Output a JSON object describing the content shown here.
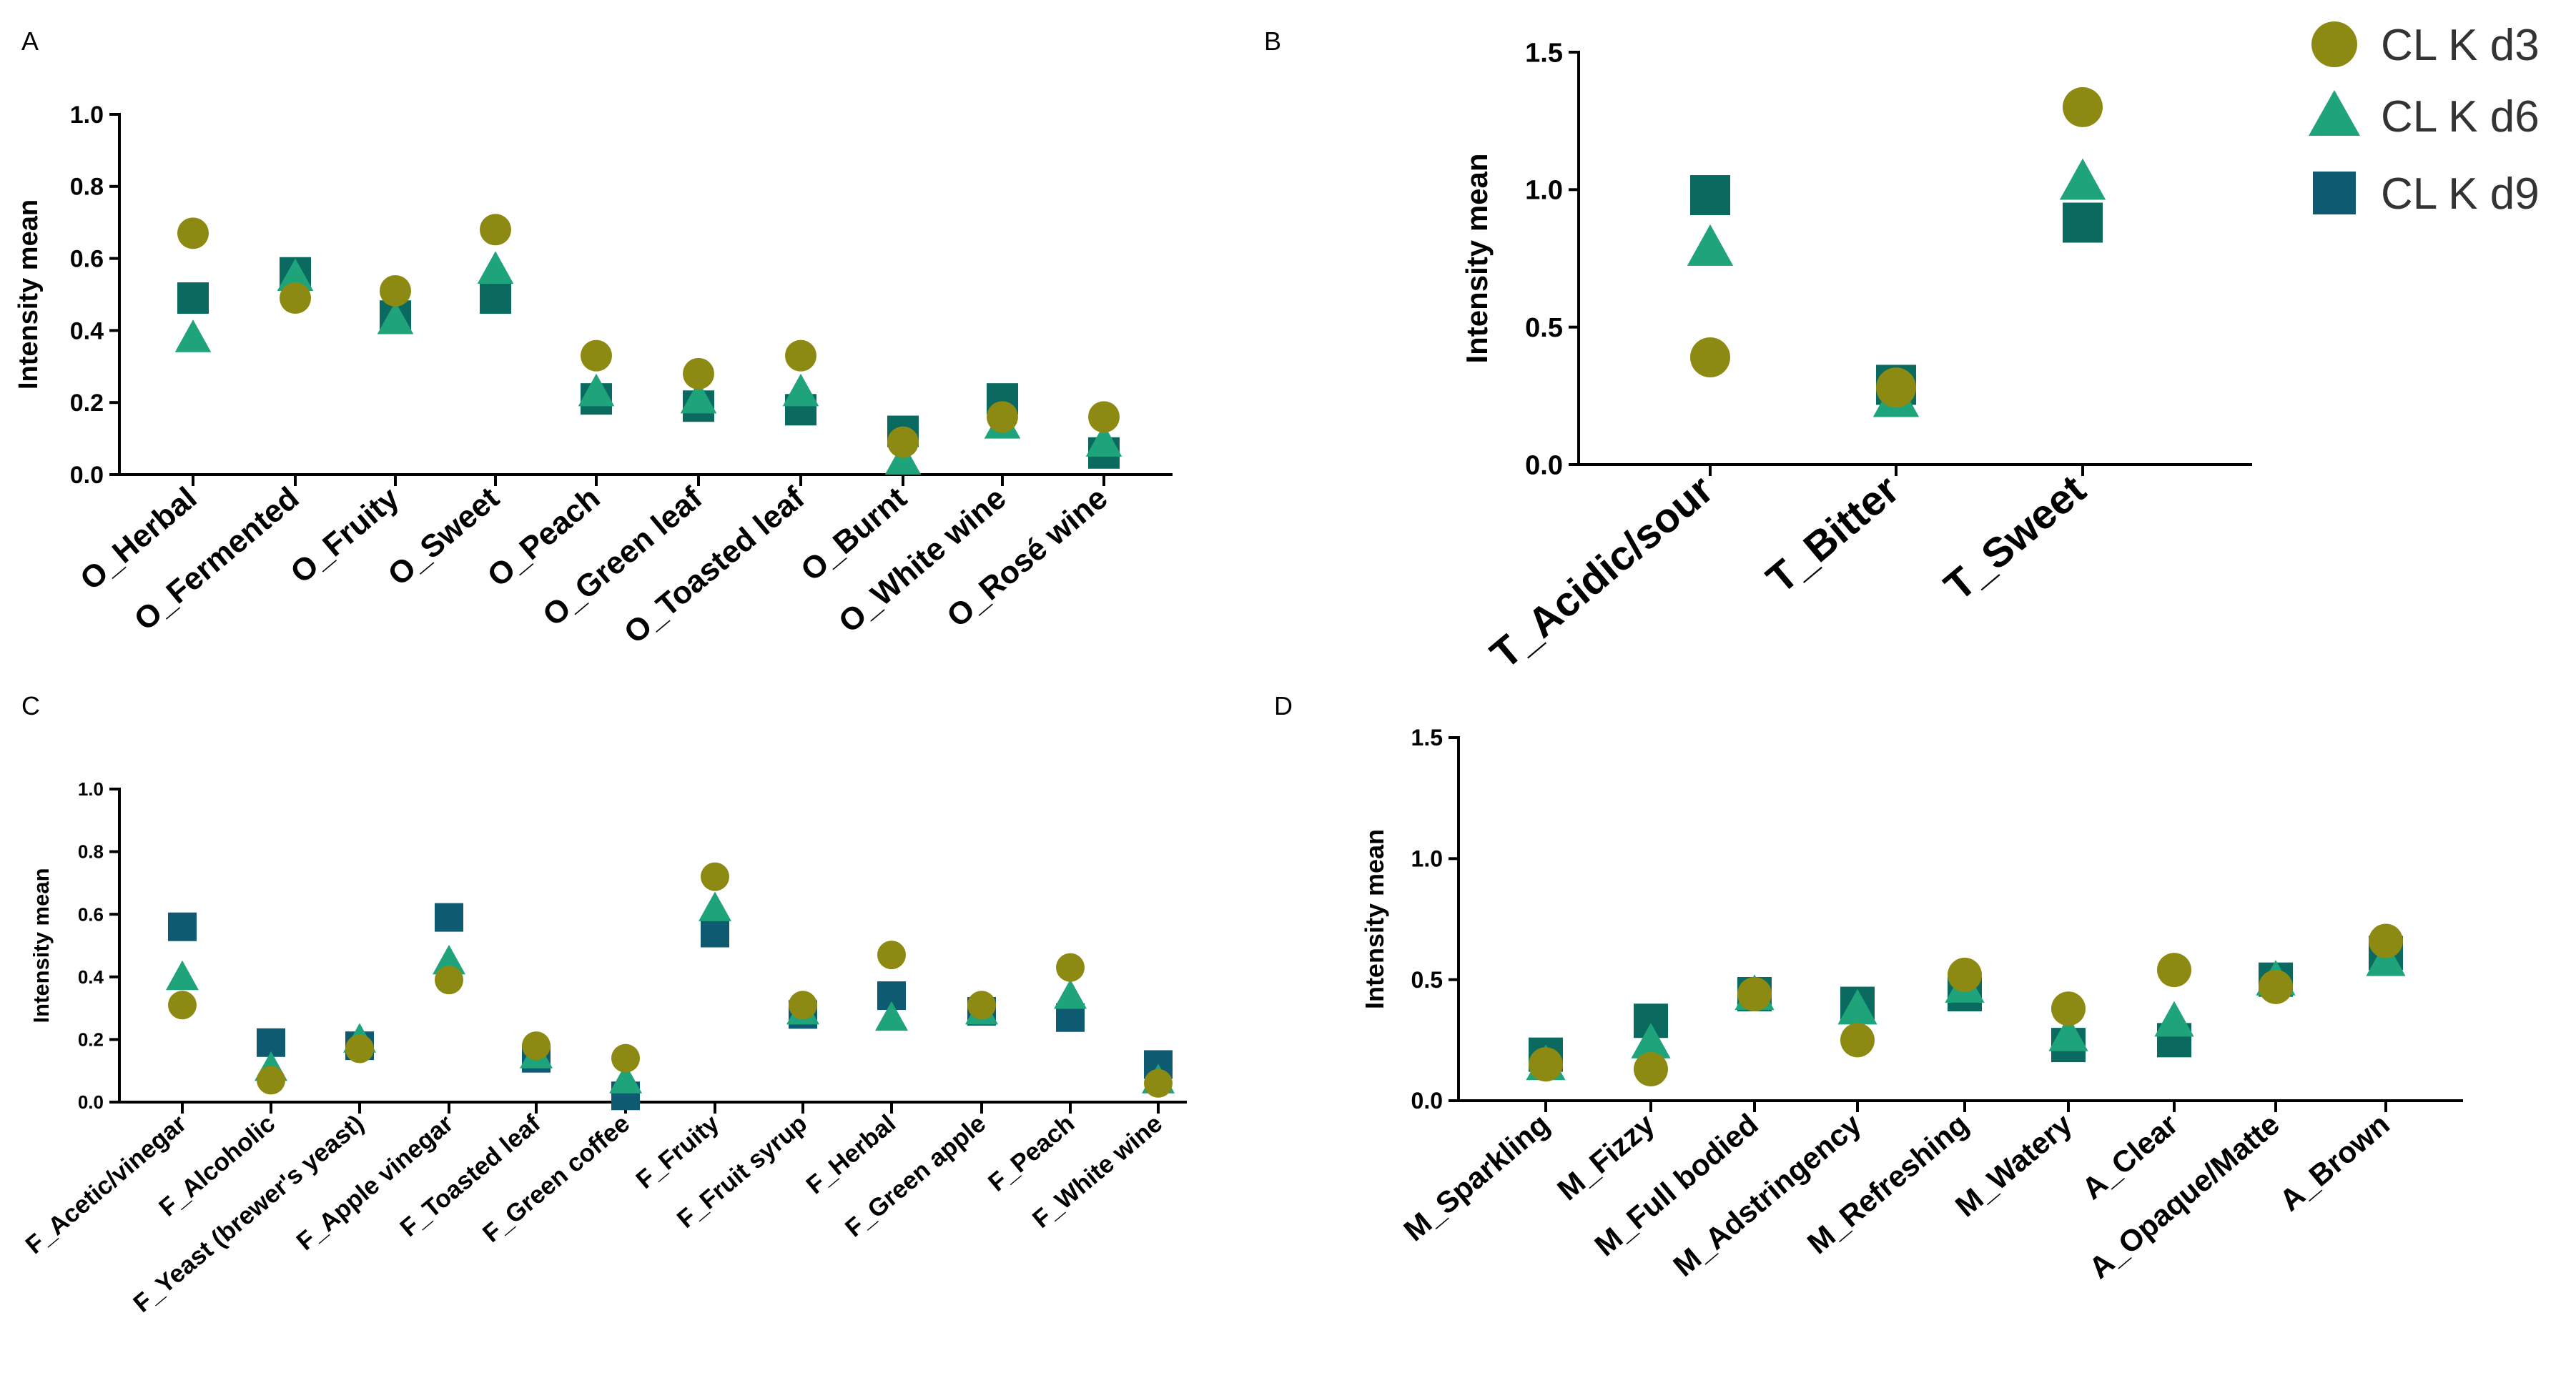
{
  "colors": {
    "d3": "#8c8a12",
    "d6": "#1ea37a",
    "d9": "#0a6a60",
    "d9_alt": "#0e5a70"
  },
  "legend": [
    {
      "label": "CL K d3",
      "marker": "circle",
      "color": "#8c8a12"
    },
    {
      "label": "CL K d6",
      "marker": "triangle",
      "color": "#1ea37a"
    },
    {
      "label": "CL K d9",
      "marker": "square",
      "color": "#0e5a70"
    }
  ],
  "chart_data": [
    {
      "panel": "A",
      "type": "scatter",
      "ylabel": "Intensity mean",
      "ylim": [
        0,
        1.0
      ],
      "yticks": [
        "0.0",
        "0.2",
        "0.4",
        "0.6",
        "0.8",
        "1.0"
      ],
      "categories": [
        "O_Herbal",
        "O_Fermented",
        "O_Fruity",
        "O_Sweet",
        "O_Peach",
        "O_Green leaf",
        "O_Toasted leaf",
        "O_Burnt",
        "O_White wine",
        "O_Rosé wine"
      ],
      "series": [
        {
          "name": "CL K d3",
          "values": [
            0.67,
            0.49,
            0.51,
            0.68,
            0.33,
            0.28,
            0.33,
            0.09,
            0.16,
            0.16
          ]
        },
        {
          "name": "CL K d6",
          "values": [
            0.38,
            0.55,
            0.43,
            0.57,
            0.23,
            0.21,
            0.23,
            0.04,
            0.14,
            0.09
          ]
        },
        {
          "name": "CL K d9",
          "values": [
            0.49,
            0.56,
            0.44,
            0.49,
            0.21,
            0.19,
            0.18,
            0.12,
            0.21,
            0.06
          ]
        }
      ]
    },
    {
      "panel": "B",
      "type": "scatter",
      "ylabel": "Intensity mean",
      "ylim": [
        0,
        1.5
      ],
      "yticks": [
        "0.0",
        "0.5",
        "1.0",
        "1.5"
      ],
      "categories": [
        "T_Acidic/sour",
        "T_Bitter",
        "T_Sweet"
      ],
      "series": [
        {
          "name": "CL K d3",
          "values": [
            0.39,
            0.28,
            1.3
          ]
        },
        {
          "name": "CL K d6",
          "values": [
            0.79,
            0.24,
            1.03
          ]
        },
        {
          "name": "CL K d9",
          "values": [
            0.98,
            0.29,
            0.88
          ]
        }
      ]
    },
    {
      "panel": "C",
      "type": "scatter",
      "ylabel": "Intensity mean",
      "ylim": [
        0,
        1.0
      ],
      "yticks": [
        "0.0",
        "0.2",
        "0.4",
        "0.6",
        "0.8",
        "1.0"
      ],
      "categories": [
        "F_Acetic/vinegar",
        "F_Alcoholic",
        "F_Yeast (brewer's yeast)",
        "F_Apple vinegar",
        "F_Toasted leaf",
        "F_Green coffee",
        "F_Fruity",
        "F_Fruit syrup",
        "F_Herbal",
        "F_Green apple",
        "F_Peach",
        "F_White wine"
      ],
      "series": [
        {
          "name": "CL K d3",
          "values": [
            0.31,
            0.07,
            0.17,
            0.39,
            0.18,
            0.14,
            0.72,
            0.31,
            0.47,
            0.31,
            0.43,
            0.06
          ]
        },
        {
          "name": "CL K d6",
          "values": [
            0.4,
            0.11,
            0.2,
            0.45,
            0.15,
            0.07,
            0.62,
            0.29,
            0.27,
            0.29,
            0.34,
            0.07
          ]
        },
        {
          "name": "CL K d9",
          "values": [
            0.56,
            0.19,
            0.18,
            0.59,
            0.14,
            0.02,
            0.54,
            0.28,
            0.34,
            0.29,
            0.27,
            0.12
          ]
        }
      ]
    },
    {
      "panel": "D",
      "type": "scatter",
      "ylabel": "Intensity mean",
      "ylim": [
        0,
        1.5
      ],
      "yticks": [
        "0.0",
        "0.5",
        "1.0",
        "1.5"
      ],
      "categories": [
        "M_Sparkling",
        "M_Fizzy",
        "M_Full bodied",
        "M_Adstringency",
        "M_Refreshing",
        "M_Watery",
        "A_Clear",
        "A_Opaque/Matte",
        "A_Brown"
      ],
      "series": [
        {
          "name": "CL K d3",
          "values": [
            0.15,
            0.13,
            0.44,
            0.25,
            0.52,
            0.38,
            0.54,
            0.47,
            0.66
          ]
        },
        {
          "name": "CL K d6",
          "values": [
            0.15,
            0.24,
            0.44,
            0.38,
            0.47,
            0.27,
            0.33,
            0.5,
            0.58
          ]
        },
        {
          "name": "CL K d9",
          "values": [
            0.19,
            0.33,
            0.44,
            0.4,
            0.44,
            0.23,
            0.25,
            0.5,
            0.61
          ]
        }
      ]
    }
  ]
}
